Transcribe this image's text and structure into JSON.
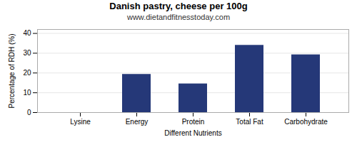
{
  "chart_data": {
    "type": "bar",
    "title": "Danish pastry, cheese per 100g",
    "subtitle": "www.dietandfitnesstoday.com",
    "xlabel": "Different Nutrients",
    "ylabel": "Percentage of RDH (%)",
    "categories": [
      "Lysine",
      "Energy",
      "Protein",
      "Total Fat",
      "Carbohydrate"
    ],
    "values": [
      0,
      19.3,
      14.5,
      34.0,
      29.2
    ],
    "color": "#253878",
    "ylim": [
      0,
      42
    ],
    "yticks": [
      0,
      10,
      20,
      30,
      40
    ],
    "grid": true
  }
}
